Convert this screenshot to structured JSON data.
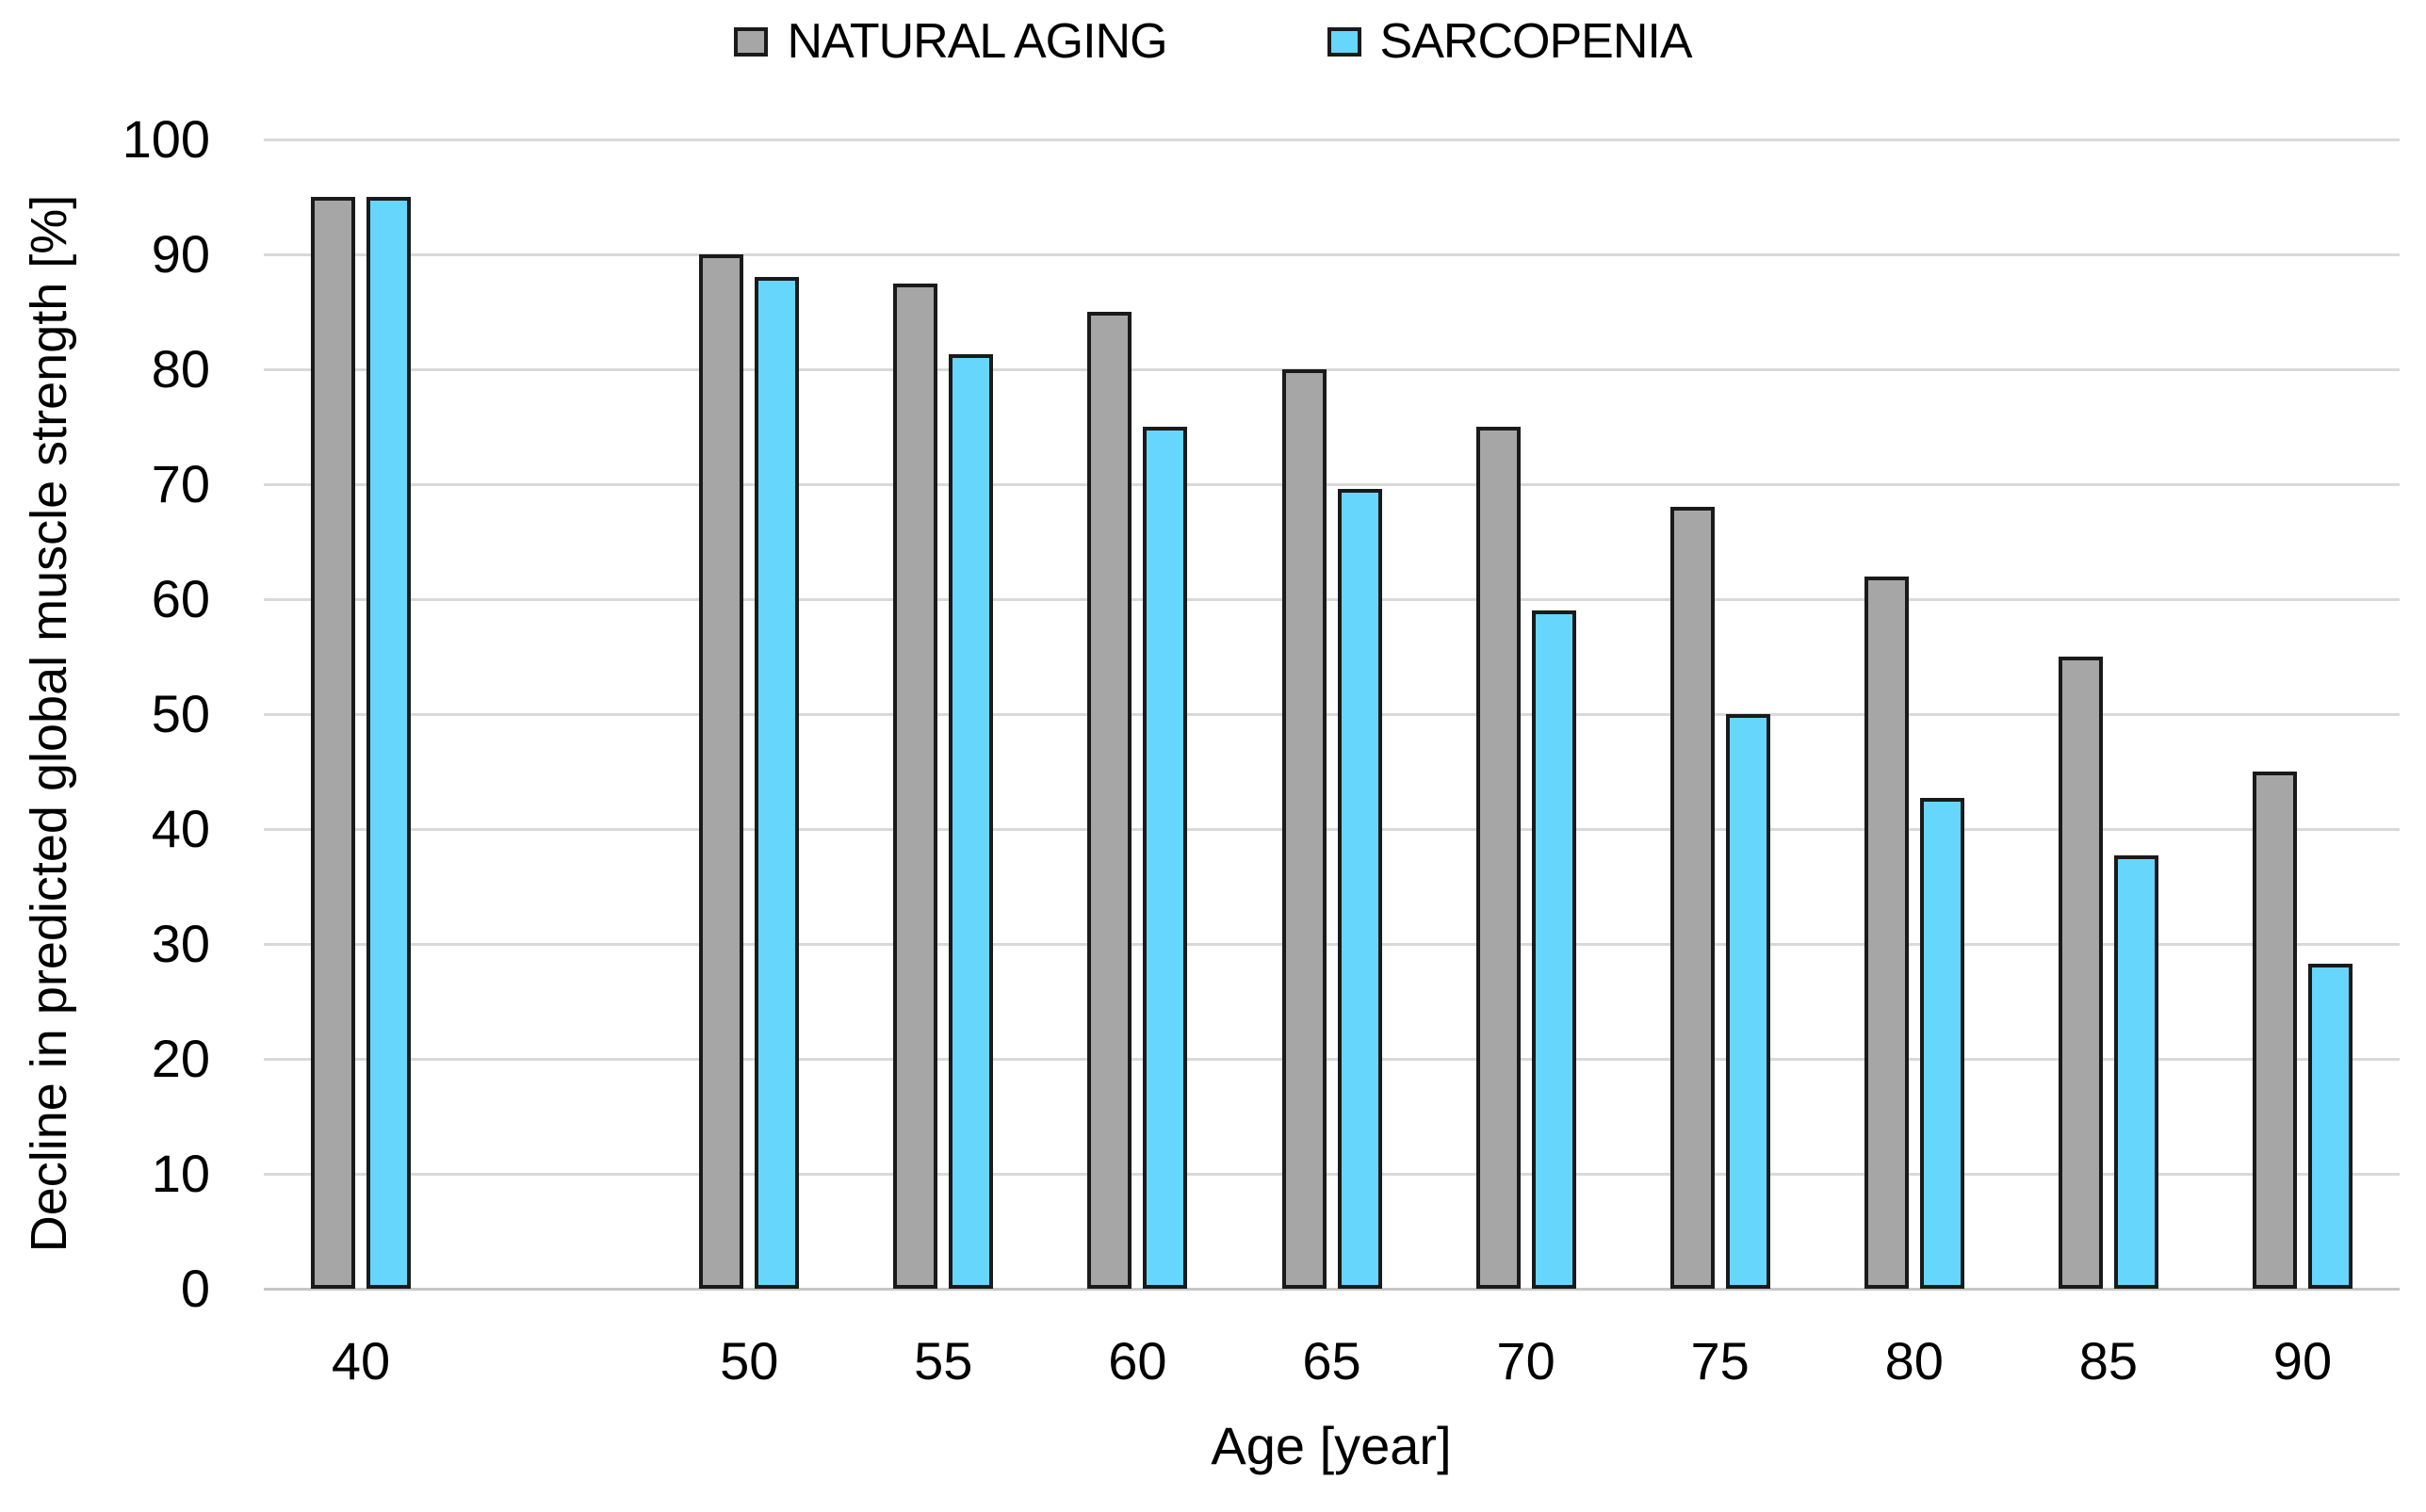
{
  "figure": {
    "background": "#ffffff",
    "gridline_color": "#d9d9d9",
    "axisline_color": "#c6c6c6",
    "bar_outline_color": "#1a1a1a"
  },
  "legend": {
    "items": [
      {
        "label": "NATURAL AGING",
        "color": "#a6a6a6"
      },
      {
        "label": "SARCOPENIA",
        "color": "#66d6fc"
      }
    ]
  },
  "axes": {
    "y_title": "Decline in predicted global muscle strength [%]",
    "x_title": "Age [year]"
  },
  "chart_data": {
    "type": "bar",
    "title": "",
    "categories": [
      "40",
      "50",
      "55",
      "60",
      "65",
      "70",
      "75",
      "80",
      "85",
      "90"
    ],
    "series": [
      {
        "name": "NATURAL AGING",
        "color": "#a6a6a6",
        "values": [
          95,
          90,
          87.5,
          85,
          80,
          75,
          68,
          62,
          55,
          45
        ]
      },
      {
        "name": "SARCOPENIA",
        "color": "#66d6fc",
        "values": [
          95,
          88,
          81.3,
          75,
          69.6,
          59,
          50,
          42.7,
          37.7,
          28.3
        ]
      }
    ],
    "xlabel": "Age [year]",
    "ylabel": "Decline in predicted global muscle strength [%]",
    "ylim": [
      0,
      100
    ],
    "ytick_step": 10,
    "yticks": [
      0,
      10,
      20,
      30,
      40,
      50,
      60,
      70,
      80,
      90,
      100
    ],
    "grid": "horizontal",
    "legend_position": "top-center",
    "category_slots": [
      0,
      2,
      3,
      4,
      5,
      6,
      7,
      8,
      9,
      10
    ],
    "total_slots": 11
  }
}
